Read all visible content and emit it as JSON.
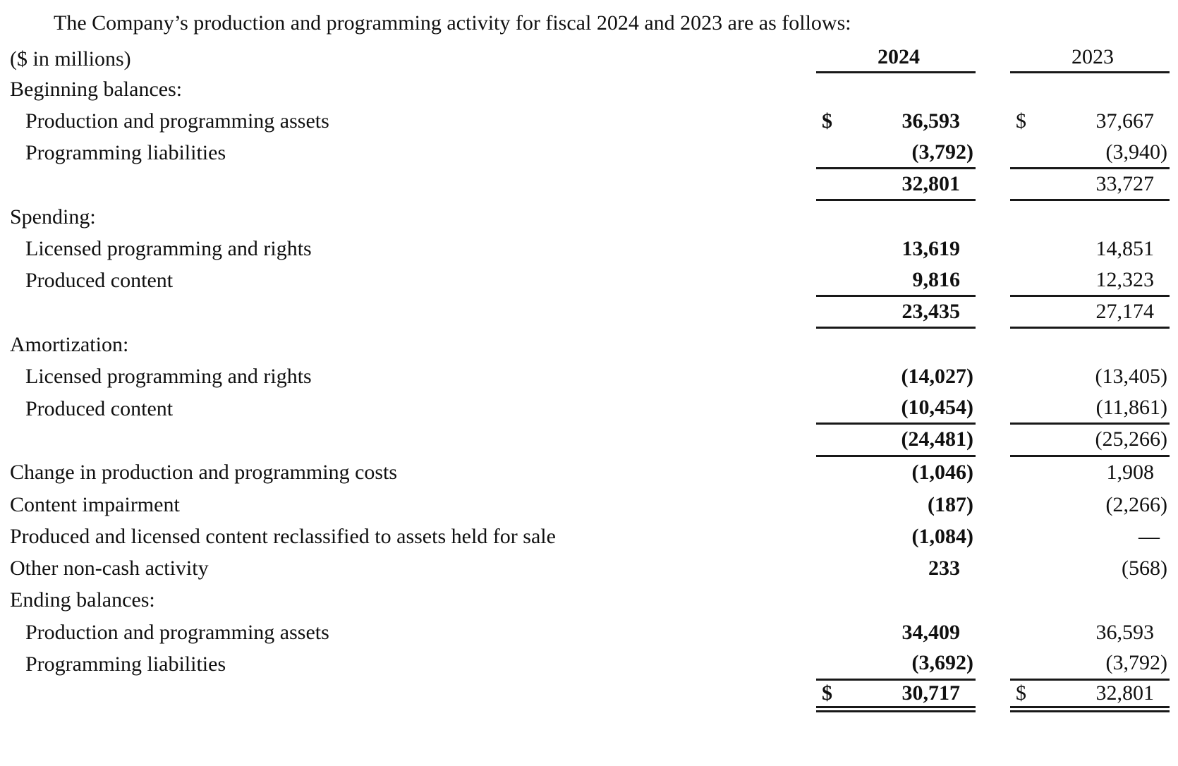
{
  "title": "The Company’s production and programming activity for fiscal 2024 and 2023 are as follows:",
  "table": {
    "unit_label": "($ in millions)",
    "col_headers": [
      "2024",
      "2023"
    ],
    "rows": [
      {
        "label": "Beginning balances:",
        "indent": 0,
        "d2024": "",
        "v2024": "",
        "d2023": "",
        "v2023": "",
        "rule": "none"
      },
      {
        "label": "Production and programming assets",
        "indent": 1,
        "d2024": "$",
        "v2024": "36,593",
        "d2023": "$",
        "v2023": "37,667",
        "rule": "none"
      },
      {
        "label": "Programming liabilities",
        "indent": 1,
        "d2024": "",
        "v2024": "(3,792)",
        "d2023": "",
        "v2023": "(3,940)",
        "rule": "single"
      },
      {
        "label": "",
        "indent": 0,
        "d2024": "",
        "v2024": "32,801",
        "d2023": "",
        "v2023": "33,727",
        "rule": "single"
      },
      {
        "label": "Spending:",
        "indent": 0,
        "d2024": "",
        "v2024": "",
        "d2023": "",
        "v2023": "",
        "rule": "none"
      },
      {
        "label": "Licensed programming and rights",
        "indent": 1,
        "d2024": "",
        "v2024": "13,619",
        "d2023": "",
        "v2023": "14,851",
        "rule": "none"
      },
      {
        "label": "Produced content",
        "indent": 1,
        "d2024": "",
        "v2024": "9,816",
        "d2023": "",
        "v2023": "12,323",
        "rule": "single"
      },
      {
        "label": "",
        "indent": 0,
        "d2024": "",
        "v2024": "23,435",
        "d2023": "",
        "v2023": "27,174",
        "rule": "single"
      },
      {
        "label": "Amortization:",
        "indent": 0,
        "d2024": "",
        "v2024": "",
        "d2023": "",
        "v2023": "",
        "rule": "none"
      },
      {
        "label": "Licensed programming and rights",
        "indent": 1,
        "d2024": "",
        "v2024": "(14,027)",
        "d2023": "",
        "v2023": "(13,405)",
        "rule": "none"
      },
      {
        "label": "Produced content",
        "indent": 1,
        "d2024": "",
        "v2024": "(10,454)",
        "d2023": "",
        "v2023": "(11,861)",
        "rule": "single"
      },
      {
        "label": "",
        "indent": 0,
        "d2024": "",
        "v2024": "(24,481)",
        "d2023": "",
        "v2023": "(25,266)",
        "rule": "single"
      },
      {
        "label": "Change in production and programming costs",
        "indent": 0,
        "d2024": "",
        "v2024": "(1,046)",
        "d2023": "",
        "v2023": "1,908",
        "rule": "none"
      },
      {
        "label": "Content impairment",
        "indent": 0,
        "d2024": "",
        "v2024": "(187)",
        "d2023": "",
        "v2023": "(2,266)",
        "rule": "none"
      },
      {
        "label": "Produced and licensed content reclassified to assets held for sale",
        "indent": 0,
        "d2024": "",
        "v2024": "(1,084)",
        "d2023": "",
        "v2023": "—",
        "rule": "none"
      },
      {
        "label": "Other non-cash activity",
        "indent": 0,
        "d2024": "",
        "v2024": "233",
        "d2023": "",
        "v2023": "(568)",
        "rule": "none"
      },
      {
        "label": "Ending balances:",
        "indent": 0,
        "d2024": "",
        "v2024": "",
        "d2023": "",
        "v2023": "",
        "rule": "none"
      },
      {
        "label": "Production and programming assets",
        "indent": 1,
        "d2024": "",
        "v2024": "34,409",
        "d2023": "",
        "v2023": "36,593",
        "rule": "none"
      },
      {
        "label": "Programming liabilities",
        "indent": 1,
        "d2024": "",
        "v2024": "(3,692)",
        "d2023": "",
        "v2023": "(3,792)",
        "rule": "single"
      },
      {
        "label": "",
        "indent": 0,
        "d2024": "$",
        "v2024": "30,717",
        "d2023": "$",
        "v2023": "32,801",
        "rule": "double"
      }
    ]
  },
  "colors": {
    "text": "#101010",
    "rule": "#181818",
    "background": "#ffffff"
  }
}
